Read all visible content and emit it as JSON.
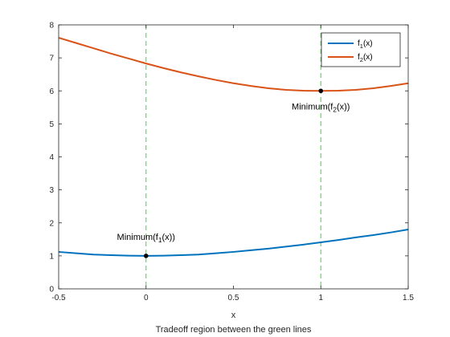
{
  "chart_data": {
    "type": "line",
    "xlabel": "x",
    "caption": "Tradeoff region between the green lines",
    "xlim": [
      -0.5,
      1.5
    ],
    "ylim": [
      0,
      8
    ],
    "xticks": [
      -0.5,
      0,
      0.5,
      1,
      1.5
    ],
    "xtick_labels": [
      "-0.5",
      "0",
      "0.5",
      "1",
      "1.5"
    ],
    "yticks": [
      0,
      1,
      2,
      3,
      4,
      5,
      6,
      7,
      8
    ],
    "ytick_labels": [
      "0",
      "1",
      "2",
      "3",
      "4",
      "5",
      "6",
      "7",
      "8"
    ],
    "grid": false,
    "legend_position": "top-right",
    "series": [
      {
        "name": "f1(x)",
        "name_base": "f",
        "name_sub": "1",
        "name_tail": "(x)",
        "color": "#0072BD",
        "x": [
          -0.5,
          -0.4,
          -0.3,
          -0.2,
          -0.1,
          0,
          0.1,
          0.2,
          0.3,
          0.4,
          0.5,
          0.6,
          0.7,
          0.8,
          0.9,
          1,
          1.1,
          1.2,
          1.3,
          1.4,
          1.5
        ],
        "y": [
          1.12,
          1.08,
          1.04,
          1.02,
          1.005,
          1.0,
          1.005,
          1.02,
          1.04,
          1.08,
          1.12,
          1.17,
          1.22,
          1.28,
          1.34,
          1.41,
          1.48,
          1.56,
          1.63,
          1.71,
          1.8
        ]
      },
      {
        "name": "f2(x)",
        "name_base": "f",
        "name_sub": "2",
        "name_tail": "(x)",
        "color": "#D95319",
        "x": [
          -0.5,
          -0.4,
          -0.3,
          -0.2,
          -0.1,
          0,
          0.1,
          0.2,
          0.3,
          0.4,
          0.5,
          0.6,
          0.7,
          0.8,
          0.9,
          1,
          1.1,
          1.2,
          1.3,
          1.4,
          1.5
        ],
        "y": [
          7.61,
          7.45,
          7.29,
          7.13,
          6.98,
          6.83,
          6.69,
          6.56,
          6.44,
          6.33,
          6.23,
          6.15,
          6.08,
          6.03,
          6.005,
          6.0,
          6.005,
          6.03,
          6.08,
          6.15,
          6.23
        ]
      }
    ],
    "vlines": {
      "x": [
        0,
        1
      ],
      "color": "#33DD33",
      "style": "dashed"
    },
    "points": [
      {
        "x": 0,
        "y": 1,
        "label_base": "Minimum(f",
        "label_sub": "1",
        "label_tail": "(x))",
        "label_position": "above"
      },
      {
        "x": 1,
        "y": 6,
        "label_base": "Minimum(f",
        "label_sub": "2",
        "label_tail": "(x))",
        "label_position": "below"
      }
    ]
  }
}
